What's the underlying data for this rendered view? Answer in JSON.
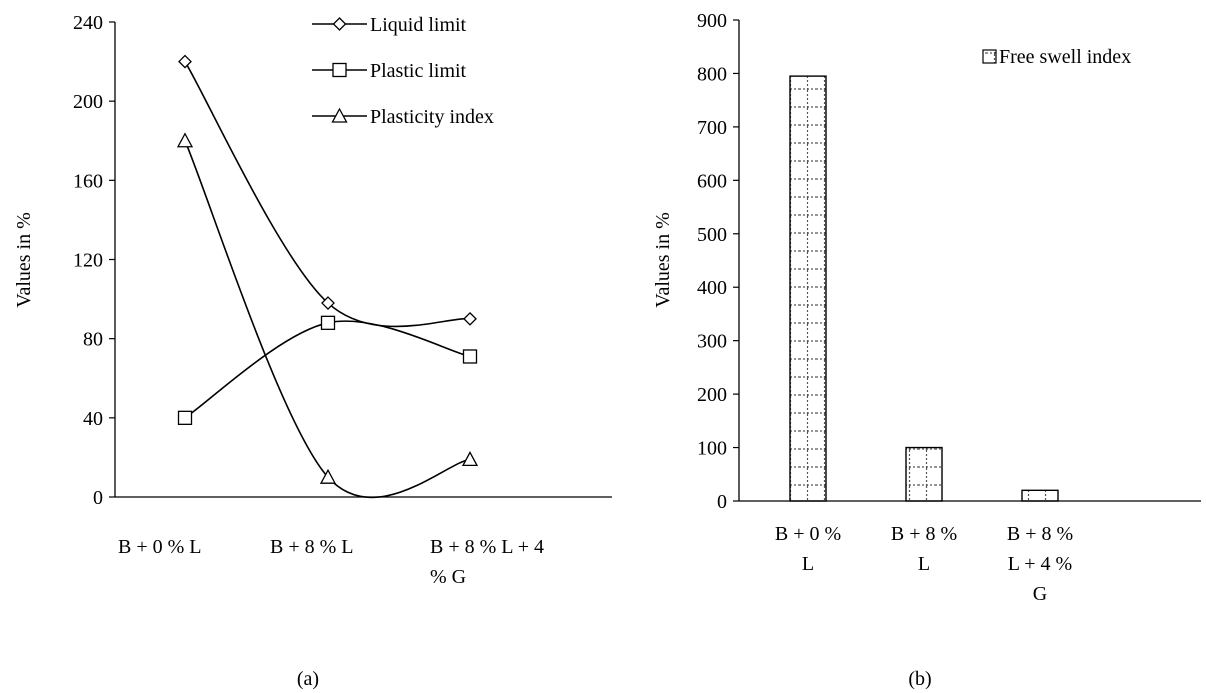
{
  "panel_labels": [
    "(a)",
    "(b)"
  ],
  "chart_data": [
    {
      "type": "line",
      "panel": "(a)",
      "ylabel": "Values in %",
      "xlabel": "",
      "ylim": [
        0,
        240
      ],
      "yticks": [
        0,
        40,
        80,
        120,
        160,
        200,
        240
      ],
      "categories": [
        "B + 0 % L",
        "B + 8 % L",
        "B + 8 % L + 4 % G"
      ],
      "category_lines": [
        [
          "B + 0 % L"
        ],
        [
          "B + 8 % L"
        ],
        [
          "B + 8 % L + 4",
          "% G"
        ]
      ],
      "legend_position": "top-right",
      "grid": false,
      "smooth": true,
      "series": [
        {
          "name": "Liquid limit",
          "marker": "diamond",
          "values": [
            220,
            98,
            90
          ]
        },
        {
          "name": "Plastic limit",
          "marker": "square",
          "values": [
            40,
            88,
            71
          ]
        },
        {
          "name": "Plasticity index",
          "marker": "triangle",
          "values": [
            180,
            10,
            19
          ]
        }
      ]
    },
    {
      "type": "bar",
      "panel": "(b)",
      "ylabel": "Values in %",
      "xlabel": "",
      "ylim": [
        0,
        900
      ],
      "yticks": [
        0,
        100,
        200,
        300,
        400,
        500,
        600,
        700,
        800,
        900
      ],
      "categories": [
        "B + 0 % L",
        "B + 8 % L",
        "B + 8 % L + 4 % G"
      ],
      "category_lines": [
        [
          "B + 0 %",
          "L"
        ],
        [
          "B + 8 %",
          "L"
        ],
        [
          "B + 8 %",
          "L + 4 %",
          "G"
        ]
      ],
      "legend_position": "top-right",
      "grid": false,
      "pattern": "dotted-grid",
      "series": [
        {
          "name": "Free swell index",
          "values": [
            795,
            100,
            20
          ]
        }
      ]
    }
  ]
}
